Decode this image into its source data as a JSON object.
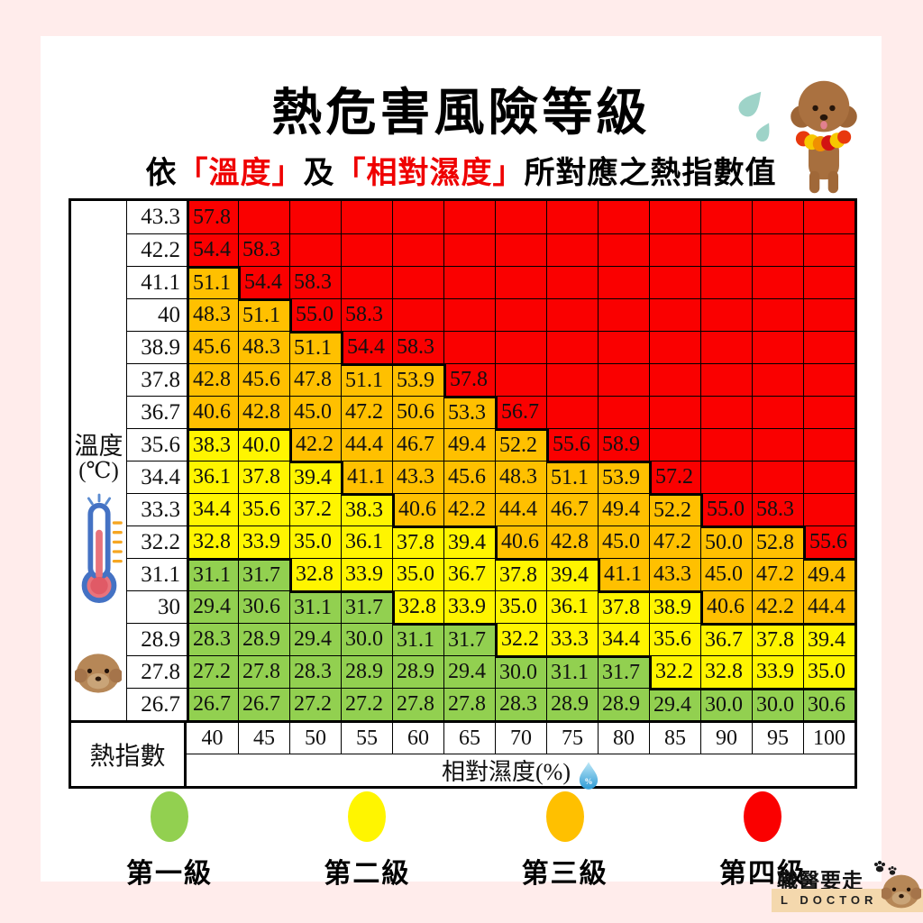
{
  "page": {
    "background": "#FFECEB",
    "card_background": "#FFFFFF"
  },
  "header": {
    "title": "熱危害風險等級",
    "highlight_color": "#EF0000",
    "subtitle": [
      {
        "text": "依",
        "red": false
      },
      {
        "text": "「溫度」",
        "red": true
      },
      {
        "text": "及",
        "red": false
      },
      {
        "text": "「相對濕度」",
        "red": true
      },
      {
        "text": "所對應之熱指數值",
        "red": false
      }
    ]
  },
  "chart_data": {
    "type": "heatmap",
    "title": "熱危害風險等級",
    "value_label": "熱指數",
    "x_axis": {
      "label": "相對濕度(%)",
      "ticks": [
        "40",
        "45",
        "50",
        "55",
        "60",
        "65",
        "70",
        "75",
        "80",
        "85",
        "90",
        "95",
        "100"
      ]
    },
    "y_axis": {
      "label": "溫度",
      "unit": "(℃)",
      "ticks": [
        "43.3",
        "42.2",
        "41.1",
        "40",
        "38.9",
        "37.8",
        "36.7",
        "35.6",
        "34.4",
        "33.3",
        "32.2",
        "31.1",
        "30",
        "28.9",
        "27.8",
        "26.7"
      ]
    },
    "levels": [
      {
        "level": 1,
        "label": "第一級",
        "color": "#92D050"
      },
      {
        "level": 2,
        "label": "第二級",
        "color": "#FFF500"
      },
      {
        "level": 3,
        "label": "第三級",
        "color": "#FFC000"
      },
      {
        "level": 4,
        "label": "第四級",
        "color": "#FA0000"
      }
    ],
    "rows": [
      {
        "temp": "43.3",
        "values": [
          "57.8",
          "",
          "",
          "",
          "",
          "",
          "",
          "",
          "",
          "",
          "",
          "",
          ""
        ],
        "levels": [
          4,
          4,
          4,
          4,
          4,
          4,
          4,
          4,
          4,
          4,
          4,
          4,
          4
        ]
      },
      {
        "temp": "42.2",
        "values": [
          "54.4",
          "58.3",
          "",
          "",
          "",
          "",
          "",
          "",
          "",
          "",
          "",
          "",
          ""
        ],
        "levels": [
          4,
          4,
          4,
          4,
          4,
          4,
          4,
          4,
          4,
          4,
          4,
          4,
          4
        ]
      },
      {
        "temp": "41.1",
        "values": [
          "51.1",
          "54.4",
          "58.3",
          "",
          "",
          "",
          "",
          "",
          "",
          "",
          "",
          "",
          ""
        ],
        "levels": [
          3,
          4,
          4,
          4,
          4,
          4,
          4,
          4,
          4,
          4,
          4,
          4,
          4
        ]
      },
      {
        "temp": "40",
        "values": [
          "48.3",
          "51.1",
          "55.0",
          "58.3",
          "",
          "",
          "",
          "",
          "",
          "",
          "",
          "",
          ""
        ],
        "levels": [
          3,
          3,
          4,
          4,
          4,
          4,
          4,
          4,
          4,
          4,
          4,
          4,
          4
        ]
      },
      {
        "temp": "38.9",
        "values": [
          "45.6",
          "48.3",
          "51.1",
          "54.4",
          "58.3",
          "",
          "",
          "",
          "",
          "",
          "",
          "",
          ""
        ],
        "levels": [
          3,
          3,
          3,
          4,
          4,
          4,
          4,
          4,
          4,
          4,
          4,
          4,
          4
        ]
      },
      {
        "temp": "37.8",
        "values": [
          "42.8",
          "45.6",
          "47.8",
          "51.1",
          "53.9",
          "57.8",
          "",
          "",
          "",
          "",
          "",
          "",
          ""
        ],
        "levels": [
          3,
          3,
          3,
          3,
          3,
          4,
          4,
          4,
          4,
          4,
          4,
          4,
          4
        ]
      },
      {
        "temp": "36.7",
        "values": [
          "40.6",
          "42.8",
          "45.0",
          "47.2",
          "50.6",
          "53.3",
          "56.7",
          "",
          "",
          "",
          "",
          "",
          ""
        ],
        "levels": [
          3,
          3,
          3,
          3,
          3,
          3,
          4,
          4,
          4,
          4,
          4,
          4,
          4
        ]
      },
      {
        "temp": "35.6",
        "values": [
          "38.3",
          "40.0",
          "42.2",
          "44.4",
          "46.7",
          "49.4",
          "52.2",
          "55.6",
          "58.9",
          "",
          "",
          "",
          ""
        ],
        "levels": [
          2,
          2,
          3,
          3,
          3,
          3,
          3,
          4,
          4,
          4,
          4,
          4,
          4
        ]
      },
      {
        "temp": "34.4",
        "values": [
          "36.1",
          "37.8",
          "39.4",
          "41.1",
          "43.3",
          "45.6",
          "48.3",
          "51.1",
          "53.9",
          "57.2",
          "",
          "",
          ""
        ],
        "levels": [
          2,
          2,
          2,
          3,
          3,
          3,
          3,
          3,
          3,
          4,
          4,
          4,
          4
        ]
      },
      {
        "temp": "33.3",
        "values": [
          "34.4",
          "35.6",
          "37.2",
          "38.3",
          "40.6",
          "42.2",
          "44.4",
          "46.7",
          "49.4",
          "52.2",
          "55.0",
          "58.3",
          ""
        ],
        "levels": [
          2,
          2,
          2,
          2,
          3,
          3,
          3,
          3,
          3,
          3,
          4,
          4,
          4
        ]
      },
      {
        "temp": "32.2",
        "values": [
          "32.8",
          "33.9",
          "35.0",
          "36.1",
          "37.8",
          "39.4",
          "40.6",
          "42.8",
          "45.0",
          "47.2",
          "50.0",
          "52.8",
          "55.6"
        ],
        "levels": [
          2,
          2,
          2,
          2,
          2,
          2,
          3,
          3,
          3,
          3,
          3,
          3,
          4
        ]
      },
      {
        "temp": "31.1",
        "values": [
          "31.1",
          "31.7",
          "32.8",
          "33.9",
          "35.0",
          "36.7",
          "37.8",
          "39.4",
          "41.1",
          "43.3",
          "45.0",
          "47.2",
          "49.4"
        ],
        "levels": [
          1,
          1,
          2,
          2,
          2,
          2,
          2,
          2,
          3,
          3,
          3,
          3,
          3
        ]
      },
      {
        "temp": "30",
        "values": [
          "29.4",
          "30.6",
          "31.1",
          "31.7",
          "32.8",
          "33.9",
          "35.0",
          "36.1",
          "37.8",
          "38.9",
          "40.6",
          "42.2",
          "44.4"
        ],
        "levels": [
          1,
          1,
          1,
          1,
          2,
          2,
          2,
          2,
          2,
          2,
          3,
          3,
          3
        ]
      },
      {
        "temp": "28.9",
        "values": [
          "28.3",
          "28.9",
          "29.4",
          "30.0",
          "31.1",
          "31.7",
          "32.2",
          "33.3",
          "34.4",
          "35.6",
          "36.7",
          "37.8",
          "39.4"
        ],
        "levels": [
          1,
          1,
          1,
          1,
          1,
          1,
          2,
          2,
          2,
          2,
          2,
          2,
          2
        ]
      },
      {
        "temp": "27.8",
        "values": [
          "27.2",
          "27.8",
          "28.3",
          "28.9",
          "28.9",
          "29.4",
          "30.0",
          "31.1",
          "31.7",
          "32.2",
          "32.8",
          "33.9",
          "35.0"
        ],
        "levels": [
          1,
          1,
          1,
          1,
          1,
          1,
          1,
          1,
          1,
          2,
          2,
          2,
          2
        ]
      },
      {
        "temp": "26.7",
        "values": [
          "26.7",
          "26.7",
          "27.2",
          "27.2",
          "27.8",
          "27.8",
          "28.3",
          "28.9",
          "28.9",
          "29.4",
          "30.0",
          "30.0",
          "30.6"
        ],
        "levels": [
          1,
          1,
          1,
          1,
          1,
          1,
          1,
          1,
          1,
          1,
          1,
          1,
          1
        ]
      }
    ]
  },
  "footer_logo": {
    "brand": "職醫要走",
    "subtitle": "L  DOCTOR"
  }
}
